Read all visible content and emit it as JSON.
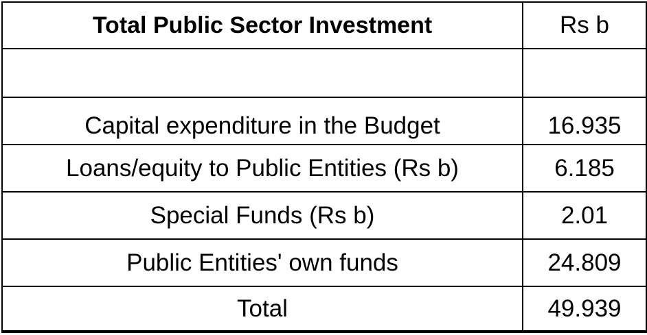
{
  "table": {
    "header": {
      "label": "Total Public Sector Investment",
      "unit": "Rs b"
    },
    "rows": [
      {
        "label": "Capital expenditure in the Budget",
        "value": "16.935"
      },
      {
        "label": "Loans/equity to Public Entities (Rs b)",
        "value": "6.185"
      },
      {
        "label": "Special Funds (Rs b)",
        "value": "2.01"
      },
      {
        "label": "Public Entities' own funds",
        "value": "24.809"
      },
      {
        "label": "Total",
        "value": "49.939"
      }
    ]
  }
}
